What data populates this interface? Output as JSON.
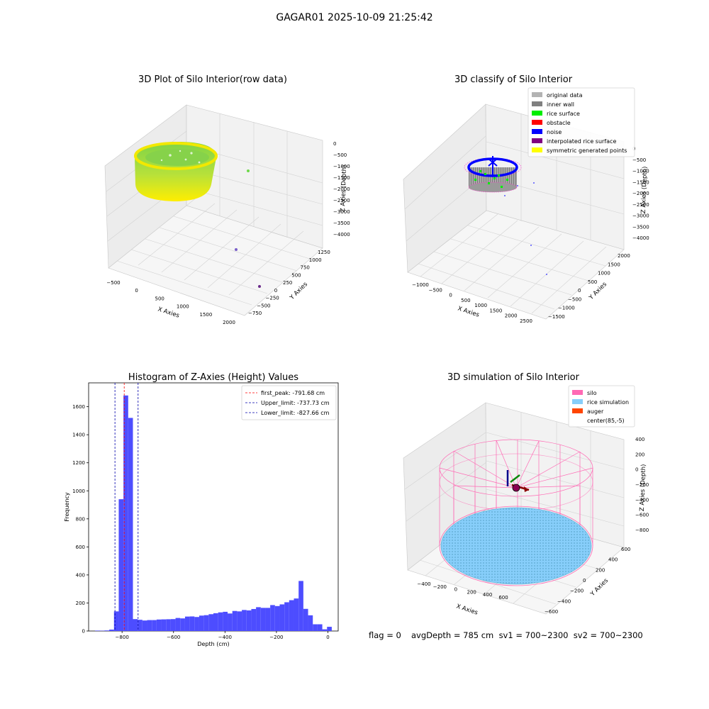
{
  "figure": {
    "suptitle": "GAGAR01 2025-10-09 21:25:42",
    "footer": {
      "flag": "flag = 0",
      "stats": "avgDepth = 785 cm  sv1 = 700~2300  sv2 = 700~2300"
    }
  },
  "colors": {
    "histogram_bar": "#4d4dff",
    "first_peak_line": "#ff0000",
    "limit_lines": "#0000aa",
    "raw_gradient": [
      "#7ed348",
      "#ffee00"
    ],
    "silo": "#ff69b4",
    "rice_simulation": "#87cefa",
    "auger": "#ff4500"
  },
  "chart_data": [
    {
      "id": "raw",
      "type": "scatter",
      "projection": "3d",
      "title": "3D Plot of Silo Interior(row data)",
      "xlabel": "X Axies",
      "ylabel": "Y Axies",
      "zlabel": "Z Axies (Depth)",
      "x_ticks": [
        "−500",
        "0",
        "500",
        "1000",
        "1500",
        "2000"
      ],
      "y_ticks": [
        "−750",
        "−500",
        "−250",
        "0",
        "250",
        "500",
        "750",
        "1000",
        "1250"
      ],
      "z_ticks": [
        "−4000",
        "−3500",
        "−3000",
        "−2500",
        "−2000",
        "−1500",
        "−1000",
        "−500",
        "0"
      ],
      "grid": true,
      "outliers": [
        {
          "x": 900,
          "y": 1000,
          "z": -1050
        },
        {
          "x": 1300,
          "y": 400,
          "z": -3500
        },
        {
          "x": 2050,
          "y": -300,
          "z": -3600
        }
      ]
    },
    {
      "id": "classify",
      "type": "scatter",
      "projection": "3d",
      "title": "3D classify of Silo Interior",
      "xlabel": "X Axies",
      "ylabel": "Y Axies",
      "zlabel": "Z Axies (Depth)",
      "x_ticks": [
        "−1000",
        "−500",
        "0",
        "500",
        "1000",
        "1500",
        "2000",
        "2500"
      ],
      "y_ticks": [
        "−1500",
        "−1000",
        "−500",
        "0",
        "500",
        "1000",
        "1500",
        "2000"
      ],
      "z_ticks": [
        "−4000",
        "−3500",
        "−3000",
        "−2500",
        "−2000",
        "−1500",
        "−1000",
        "−500",
        "0"
      ],
      "grid": true,
      "legend_position": "top-right",
      "legend": [
        {
          "label": "original data",
          "color": "#b3b3b3"
        },
        {
          "label": "inner wall",
          "color": "#808080"
        },
        {
          "label": "rice surface",
          "color": "#00ee00"
        },
        {
          "label": "obstacle",
          "color": "#ff0000"
        },
        {
          "label": "noise",
          "color": "#0000ff"
        },
        {
          "label": "interpolated rice surface",
          "color": "#800080"
        },
        {
          "label": "symmetric generated points",
          "color": "#ffff00"
        }
      ]
    },
    {
      "id": "hist",
      "type": "bar",
      "title": "Histogram of Z-Axies (Height) Values",
      "xlabel": "Depth (cm)",
      "ylabel": "Frequency",
      "xlim": [
        -930,
        40
      ],
      "ylim": [
        0,
        1770
      ],
      "x_ticks": [
        {
          "v": -800,
          "label": "−800"
        },
        {
          "v": -600,
          "label": "−600"
        },
        {
          "v": -400,
          "label": "−400"
        },
        {
          "v": -200,
          "label": "−200"
        },
        {
          "v": 0,
          "label": "0"
        }
      ],
      "y_ticks": [
        {
          "v": 0,
          "label": "0"
        },
        {
          "v": 200,
          "label": "200"
        },
        {
          "v": 400,
          "label": "400"
        },
        {
          "v": 600,
          "label": "600"
        },
        {
          "v": 800,
          "label": "800"
        },
        {
          "v": 1000,
          "label": "1000"
        },
        {
          "v": 1200,
          "label": "1200"
        },
        {
          "v": 1400,
          "label": "1400"
        },
        {
          "v": 1600,
          "label": "1600"
        }
      ],
      "bin_width": 18.4,
      "bins": [
        {
          "x0": -905,
          "v": 3
        },
        {
          "x0": -886.6,
          "v": 2
        },
        {
          "x0": -868.2,
          "v": 4
        },
        {
          "x0": -849.8,
          "v": 10
        },
        {
          "x0": -831.4,
          "v": 140
        },
        {
          "x0": -813,
          "v": 940
        },
        {
          "x0": -794.6,
          "v": 1680
        },
        {
          "x0": -776.2,
          "v": 1520
        },
        {
          "x0": -757.8,
          "v": 85
        },
        {
          "x0": -739.4,
          "v": 80
        },
        {
          "x0": -721,
          "v": 75
        },
        {
          "x0": -702.6,
          "v": 78
        },
        {
          "x0": -684.2,
          "v": 78
        },
        {
          "x0": -665.8,
          "v": 82
        },
        {
          "x0": -647.4,
          "v": 83
        },
        {
          "x0": -629,
          "v": 84
        },
        {
          "x0": -610.6,
          "v": 85
        },
        {
          "x0": -592.2,
          "v": 93
        },
        {
          "x0": -573.8,
          "v": 90
        },
        {
          "x0": -555.4,
          "v": 103
        },
        {
          "x0": -537,
          "v": 104
        },
        {
          "x0": -518.6,
          "v": 100
        },
        {
          "x0": -500.2,
          "v": 110
        },
        {
          "x0": -481.8,
          "v": 113
        },
        {
          "x0": -463.4,
          "v": 120
        },
        {
          "x0": -445,
          "v": 127
        },
        {
          "x0": -426.6,
          "v": 133
        },
        {
          "x0": -408.2,
          "v": 137
        },
        {
          "x0": -389.8,
          "v": 125
        },
        {
          "x0": -371.4,
          "v": 143
        },
        {
          "x0": -353,
          "v": 140
        },
        {
          "x0": -334.6,
          "v": 150
        },
        {
          "x0": -316.2,
          "v": 147
        },
        {
          "x0": -297.8,
          "v": 157
        },
        {
          "x0": -279.4,
          "v": 170
        },
        {
          "x0": -261,
          "v": 165
        },
        {
          "x0": -242.6,
          "v": 165
        },
        {
          "x0": -224.2,
          "v": 185
        },
        {
          "x0": -205.8,
          "v": 178
        },
        {
          "x0": -187.4,
          "v": 190
        },
        {
          "x0": -169,
          "v": 205
        },
        {
          "x0": -150.6,
          "v": 220
        },
        {
          "x0": -132.2,
          "v": 232
        },
        {
          "x0": -113.8,
          "v": 357
        },
        {
          "x0": -95.4,
          "v": 158
        },
        {
          "x0": -77,
          "v": 112
        },
        {
          "x0": -58.6,
          "v": 48
        },
        {
          "x0": -40.2,
          "v": 48
        },
        {
          "x0": -21.8,
          "v": 12
        },
        {
          "x0": -3.4,
          "v": 30
        }
      ],
      "vlines": [
        {
          "x": -791.68,
          "color": "#ff0000",
          "label": "first_peak: -791.68 cm"
        },
        {
          "x": -737.73,
          "color": "#0000aa",
          "label": "Upper_limit: -737.73 cm"
        },
        {
          "x": -827.66,
          "color": "#0000aa",
          "label": "Lower_limit: -827.66 cm"
        }
      ],
      "legend_position": "top-right"
    },
    {
      "id": "sim",
      "type": "scatter",
      "projection": "3d",
      "title": "3D simulation of Silo Interior",
      "xlabel": "X Axies",
      "ylabel": "Y Axies",
      "zlabel": "Z Axies (Depth)",
      "x_ticks": [
        "−400",
        "−200",
        "0",
        "200",
        "400",
        "600"
      ],
      "y_ticks": [
        "−600",
        "−400",
        "−200",
        "0",
        "200",
        "400",
        "600"
      ],
      "z_ticks": [
        "−800",
        "−600",
        "−400",
        "−200",
        "0",
        "200",
        "400"
      ],
      "grid": true,
      "legend_position": "top-right",
      "legend": [
        {
          "label": "silo",
          "color": "#ff69b4"
        },
        {
          "label": "rice simulation",
          "color": "#87cefa"
        },
        {
          "label": "auger",
          "color": "#ff4500"
        },
        {
          "label": "center(85,-5)",
          "color": "none"
        }
      ]
    }
  ]
}
